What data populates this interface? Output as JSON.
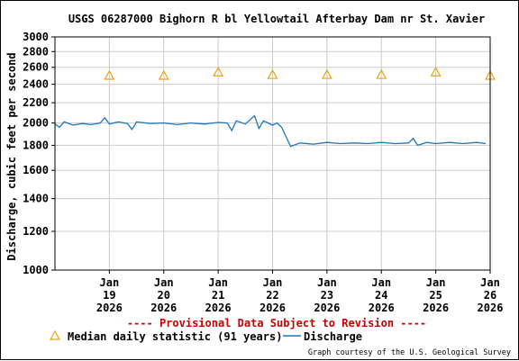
{
  "chart_data": {
    "type": "line",
    "title": "USGS 06287000 Bighorn R bl Yellowtail Afterbay Dam nr St. Xavier",
    "ylabel": "Discharge, cubic feet per second",
    "xlabel": "",
    "y_scale": "log",
    "ylim": [
      1000,
      3000
    ],
    "y_ticks": [
      1000,
      1200,
      1400,
      1600,
      1800,
      2000,
      2200,
      2400,
      2600,
      2800,
      3000
    ],
    "y_tick_labels": [
      "1000",
      "1200",
      "1400",
      "1600",
      "1800",
      "2000",
      "2200",
      "2400",
      "2600",
      "2800",
      "3000"
    ],
    "x_range": [
      "2026-01-18T12:00",
      "2026-01-26T12:00"
    ],
    "x_ticks": [
      {
        "date": "2026-01-19",
        "lines": [
          "Jan",
          "19",
          "2026"
        ]
      },
      {
        "date": "2026-01-20",
        "lines": [
          "Jan",
          "20",
          "2026"
        ]
      },
      {
        "date": "2026-01-21",
        "lines": [
          "Jan",
          "21",
          "2026"
        ]
      },
      {
        "date": "2026-01-22",
        "lines": [
          "Jan",
          "22",
          "2026"
        ]
      },
      {
        "date": "2026-01-23",
        "lines": [
          "Jan",
          "23",
          "2026"
        ]
      },
      {
        "date": "2026-01-24",
        "lines": [
          "Jan",
          "24",
          "2026"
        ]
      },
      {
        "date": "2026-01-25",
        "lines": [
          "Jan",
          "25",
          "2026"
        ]
      },
      {
        "date": "2026-01-26",
        "lines": [
          "Jan",
          "26",
          "2026"
        ]
      }
    ],
    "grid": true,
    "series": [
      {
        "name": "Median daily statistic (91 years)",
        "kind": "marker",
        "color": "#e8a317",
        "points": [
          {
            "x": "2026-01-19",
            "y": 2500
          },
          {
            "x": "2026-01-20",
            "y": 2500
          },
          {
            "x": "2026-01-21",
            "y": 2540
          },
          {
            "x": "2026-01-22",
            "y": 2510
          },
          {
            "x": "2026-01-23",
            "y": 2510
          },
          {
            "x": "2026-01-24",
            "y": 2510
          },
          {
            "x": "2026-01-25",
            "y": 2540
          },
          {
            "x": "2026-01-26",
            "y": 2500
          }
        ]
      },
      {
        "name": "Discharge",
        "kind": "line",
        "color": "#1f77b4",
        "points": [
          {
            "x": "2026-01-18T12:00",
            "y": 1990
          },
          {
            "x": "2026-01-18T14:00",
            "y": 1960
          },
          {
            "x": "2026-01-18T16:00",
            "y": 2010
          },
          {
            "x": "2026-01-18T20:00",
            "y": 1980
          },
          {
            "x": "2026-01-19T00:00",
            "y": 1995
          },
          {
            "x": "2026-01-19T04:00",
            "y": 1985
          },
          {
            "x": "2026-01-19T08:00",
            "y": 2000
          },
          {
            "x": "2026-01-19T10:00",
            "y": 2050
          },
          {
            "x": "2026-01-19T12:00",
            "y": 1990
          },
          {
            "x": "2026-01-19T16:00",
            "y": 2010
          },
          {
            "x": "2026-01-19T20:00",
            "y": 1995
          },
          {
            "x": "2026-01-19T22:00",
            "y": 1940
          },
          {
            "x": "2026-01-20T00:00",
            "y": 2010
          },
          {
            "x": "2026-01-20T06:00",
            "y": 1995
          },
          {
            "x": "2026-01-20T12:00",
            "y": 2000
          },
          {
            "x": "2026-01-20T18:00",
            "y": 1985
          },
          {
            "x": "2026-01-21T00:00",
            "y": 2000
          },
          {
            "x": "2026-01-21T06:00",
            "y": 1990
          },
          {
            "x": "2026-01-21T12:00",
            "y": 2005
          },
          {
            "x": "2026-01-21T16:00",
            "y": 2000
          },
          {
            "x": "2026-01-21T18:00",
            "y": 1930
          },
          {
            "x": "2026-01-21T20:00",
            "y": 2020
          },
          {
            "x": "2026-01-22T00:00",
            "y": 1990
          },
          {
            "x": "2026-01-22T04:00",
            "y": 2070
          },
          {
            "x": "2026-01-22T06:00",
            "y": 1950
          },
          {
            "x": "2026-01-22T08:00",
            "y": 2020
          },
          {
            "x": "2026-01-22T12:00",
            "y": 1980
          },
          {
            "x": "2026-01-22T14:00",
            "y": 2000
          },
          {
            "x": "2026-01-22T16:00",
            "y": 1960
          },
          {
            "x": "2026-01-22T19:00",
            "y": 1830
          },
          {
            "x": "2026-01-22T20:00",
            "y": 1790
          },
          {
            "x": "2026-01-23T00:00",
            "y": 1820
          },
          {
            "x": "2026-01-23T06:00",
            "y": 1810
          },
          {
            "x": "2026-01-23T12:00",
            "y": 1825
          },
          {
            "x": "2026-01-23T18:00",
            "y": 1815
          },
          {
            "x": "2026-01-24T00:00",
            "y": 1820
          },
          {
            "x": "2026-01-24T06:00",
            "y": 1815
          },
          {
            "x": "2026-01-24T12:00",
            "y": 1825
          },
          {
            "x": "2026-01-24T18:00",
            "y": 1815
          },
          {
            "x": "2026-01-25T00:00",
            "y": 1820
          },
          {
            "x": "2026-01-25T02:00",
            "y": 1860
          },
          {
            "x": "2026-01-25T04:00",
            "y": 1800
          },
          {
            "x": "2026-01-25T08:00",
            "y": 1825
          },
          {
            "x": "2026-01-25T12:00",
            "y": 1815
          },
          {
            "x": "2026-01-25T18:00",
            "y": 1825
          },
          {
            "x": "2026-01-26T00:00",
            "y": 1815
          },
          {
            "x": "2026-01-26T06:00",
            "y": 1825
          },
          {
            "x": "2026-01-26T10:00",
            "y": 1815
          }
        ]
      }
    ],
    "legend_position": "bottom",
    "annotations": [
      "---- Provisional Data Subject to Revision ----"
    ]
  },
  "footer": {
    "provisional_notice": "---- Provisional Data Subject to Revision ----",
    "provisional_color": "#cc0000",
    "legend_median_label": "Median daily statistic (91 years)",
    "legend_discharge_label": "Discharge",
    "credit": "Graph courtesy of the U.S. Geological Survey"
  },
  "colors": {
    "grid": "#cccccc",
    "axis": "#000000",
    "median_marker": "#e8a317",
    "discharge_line": "#1f77b4"
  }
}
